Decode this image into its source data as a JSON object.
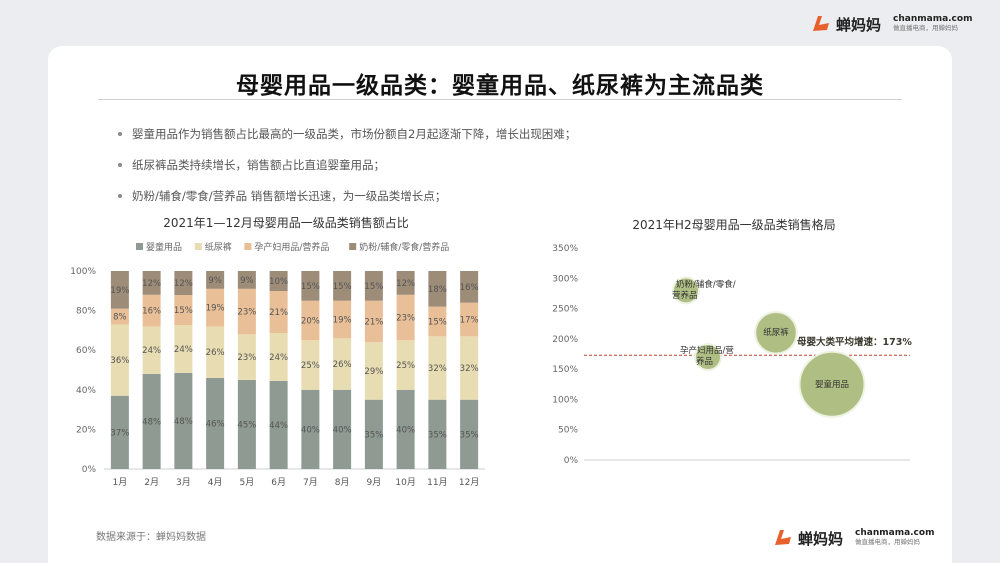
{
  "header": {
    "brand": "蝉妈妈",
    "domain": "chanmama.com",
    "tagline": "做直播电商，用蝉妈妈"
  },
  "title": "母婴用品一级品类：婴童用品、纸尿裤为主流品类",
  "bullets": [
    "婴童用品作为销售额占比最高的一级品类，市场份额自2月起逐渐下降，增长出现困难；",
    "纸尿裤品类持续增长，销售额占比直追婴童用品；",
    "奶粉/辅食/零食/营养品 销售额增长迅速，为一级品类增长点；"
  ],
  "source": "数据来源于：蝉妈妈数据",
  "footer": {
    "brand": "蝉妈妈",
    "domain": "chanmama.com",
    "tagline": "做直播电商，用蝉妈妈"
  },
  "colors": {
    "infant": "#8e9a92",
    "diaper": "#e8dcb2",
    "maternity": "#e9bf97",
    "milk": "#9d8c78",
    "bubble": "#afbf84",
    "accent": "#e8602c",
    "avg_line": "#b5462f"
  },
  "chart_data": [
    {
      "type": "bar",
      "stacked": true,
      "title": "2021年1—12月母婴用品一级品类销售额占比",
      "categories": [
        "1月",
        "2月",
        "3月",
        "4月",
        "5月",
        "6月",
        "7月",
        "8月",
        "9月",
        "10月",
        "11月",
        "12月"
      ],
      "series": [
        {
          "name": "婴童用品",
          "values": [
            37,
            48,
            48,
            46,
            45,
            44,
            40,
            40,
            35,
            40,
            35,
            35
          ],
          "labels": [
            "37%",
            "48%",
            "48%",
            "46%",
            "45%",
            "44%",
            "40%",
            "40%",
            "35%",
            "40%",
            "35%",
            "35%"
          ]
        },
        {
          "name": "纸尿裤",
          "values": [
            36,
            24,
            24,
            26,
            23,
            24,
            25,
            26,
            29,
            25,
            32,
            32
          ],
          "labels": [
            "36%",
            "24%",
            "24%",
            "26%",
            "23%",
            "24%",
            "25%",
            "26%",
            "29%",
            "25%",
            "32%",
            "32%"
          ]
        },
        {
          "name": "孕产妇用品/营养品",
          "values": [
            8,
            16,
            15,
            19,
            23,
            21,
            20,
            19,
            21,
            23,
            15,
            17
          ],
          "labels": [
            "8%",
            "16%",
            "15%",
            "19%",
            "23%",
            "21%",
            "20%",
            "19%",
            "21%",
            "23%",
            "15%",
            "17%"
          ]
        },
        {
          "name": "奶粉/辅食/零食/营养品",
          "values": [
            19,
            12,
            12,
            9,
            9,
            10,
            15,
            15,
            15,
            12,
            18,
            16
          ],
          "labels": [
            "19%",
            "12%",
            "12%",
            "9%",
            "9%",
            "10%",
            "15%",
            "15%",
            "15%",
            "12%",
            "18%",
            "16%"
          ]
        }
      ],
      "yticks": [
        "0%",
        "20%",
        "40%",
        "60%",
        "80%",
        "100%"
      ],
      "ylim": [
        0,
        100
      ],
      "legend": "top"
    },
    {
      "type": "scatter",
      "title": "2021年H2母婴用品一级品类销售格局",
      "yticks": [
        "0%",
        "50%",
        "100%",
        "150%",
        "200%",
        "250%",
        "300%",
        "350%"
      ],
      "ylim": [
        0,
        350
      ],
      "points": [
        {
          "label": "奶粉/辅食/零食/营养品",
          "y": 280,
          "size": 1.0
        },
        {
          "label": "纸尿裤",
          "y": 210,
          "size": 1.6
        },
        {
          "label": "孕产妇用品/营养品",
          "y": 170,
          "size": 1.0
        },
        {
          "label": "婴童用品",
          "y": 125,
          "size": 2.5
        }
      ],
      "reference_line": {
        "y": 173,
        "label": "母婴大类平均增速：173%"
      }
    }
  ]
}
